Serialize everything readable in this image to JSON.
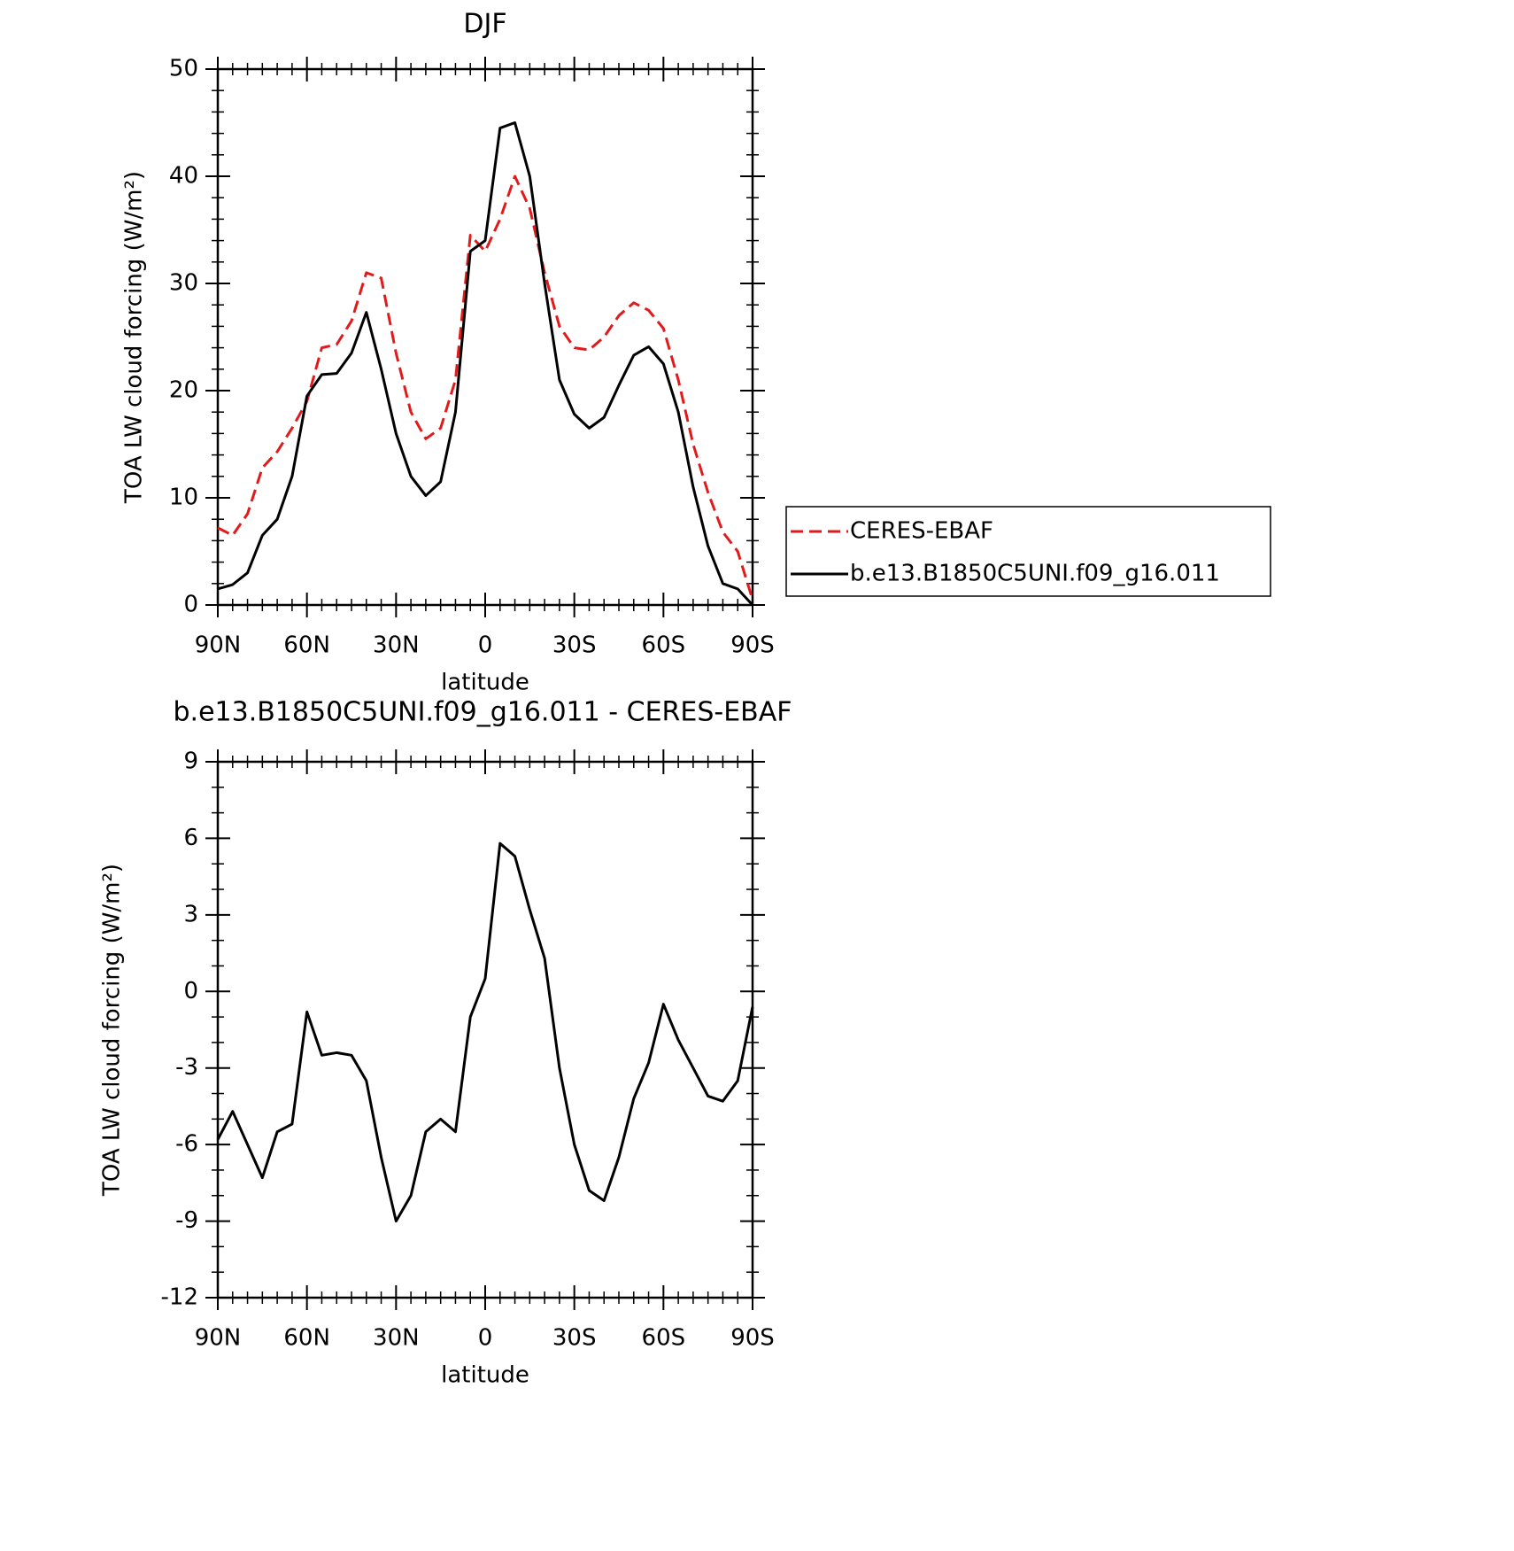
{
  "chart_data": [
    {
      "type": "line",
      "title": "DJF",
      "xlabel": "latitude",
      "ylabel": "TOA LW cloud forcing (W/m²)",
      "x": [
        90,
        85,
        80,
        75,
        70,
        65,
        60,
        55,
        50,
        45,
        40,
        35,
        30,
        25,
        20,
        15,
        10,
        5,
        0,
        -5,
        -10,
        -15,
        -20,
        -25,
        -30,
        -35,
        -40,
        -45,
        -50,
        -55,
        -60,
        -65,
        -70,
        -75,
        -80,
        -85,
        -90
      ],
      "xlim": [
        90,
        -90
      ],
      "xticks": [
        {
          "value": 90,
          "label": "90N"
        },
        {
          "value": 60,
          "label": "60N"
        },
        {
          "value": 30,
          "label": "30N"
        },
        0,
        {
          "value": -30,
          "label": "30S"
        },
        {
          "value": -60,
          "label": "60S"
        },
        {
          "value": -90,
          "label": "90S"
        }
      ],
      "ylim": [
        0,
        50
      ],
      "yticks": [
        0,
        10,
        20,
        30,
        40,
        50
      ],
      "series": [
        {
          "name": "CERES-EBAF",
          "color": "#e31a1c",
          "dash": true,
          "values": [
            7.2,
            6.5,
            8.5,
            12.8,
            14.3,
            16.5,
            19,
            24,
            24.3,
            26.5,
            31,
            30.5,
            23.5,
            18,
            15.5,
            16.5,
            21,
            34.5,
            33,
            36,
            40,
            37,
            31,
            26,
            24,
            23.8,
            25,
            27,
            28.2,
            27.5,
            25.8,
            21,
            15,
            10.5,
            6.8,
            5,
            0.5
          ]
        },
        {
          "name": "b.e13.B1850C5UNI.f09_g16.011",
          "color": "#000000",
          "dash": false,
          "values": [
            1.5,
            1.9,
            3,
            6.5,
            8,
            12,
            19.5,
            21.5,
            21.6,
            23.5,
            27.3,
            22,
            16,
            12,
            10.2,
            11.5,
            18,
            33,
            34,
            44.5,
            45,
            40,
            30,
            21,
            17.8,
            16.5,
            17.5,
            20.5,
            23.3,
            24.1,
            22.5,
            18,
            11,
            5.5,
            2,
            1.5,
            0
          ]
        }
      ]
    },
    {
      "type": "line",
      "title": "b.e13.B1850C5UNI.f09_g16.011 - CERES-EBAF",
      "xlabel": "latitude",
      "ylabel": "TOA LW cloud forcing (W/m²)",
      "x": [
        90,
        85,
        80,
        75,
        70,
        65,
        60,
        55,
        50,
        45,
        40,
        35,
        30,
        25,
        20,
        15,
        10,
        5,
        0,
        -5,
        -10,
        -15,
        -20,
        -25,
        -30,
        -35,
        -40,
        -45,
        -50,
        -55,
        -60,
        -65,
        -70,
        -75,
        -80,
        -85,
        -90
      ],
      "xlim": [
        90,
        -90
      ],
      "xticks": [
        {
          "value": 90,
          "label": "90N"
        },
        {
          "value": 60,
          "label": "60N"
        },
        {
          "value": 30,
          "label": "30N"
        },
        0,
        {
          "value": -30,
          "label": "30S"
        },
        {
          "value": -60,
          "label": "60S"
        },
        {
          "value": -90,
          "label": "90S"
        }
      ],
      "ylim": [
        -12,
        9
      ],
      "yticks": [
        -12,
        -9,
        -6,
        -3,
        0,
        3,
        6,
        9
      ],
      "series": [
        {
          "color": "#000000",
          "dash": false,
          "values": [
            -5.8,
            -4.7,
            -6,
            -7.3,
            -5.5,
            -5.2,
            -0.8,
            -2.5,
            -2.4,
            -2.5,
            -3.5,
            -6.5,
            -9,
            -8,
            -5.5,
            -5,
            -5.5,
            -1,
            0.5,
            5.8,
            5.3,
            3.2,
            1.3,
            -3,
            -6,
            -7.8,
            -8.2,
            -6.5,
            -4.2,
            -2.8,
            -0.5,
            -1.9,
            -3,
            -4.1,
            -4.3,
            -3.5,
            -0.6
          ]
        }
      ]
    }
  ]
}
